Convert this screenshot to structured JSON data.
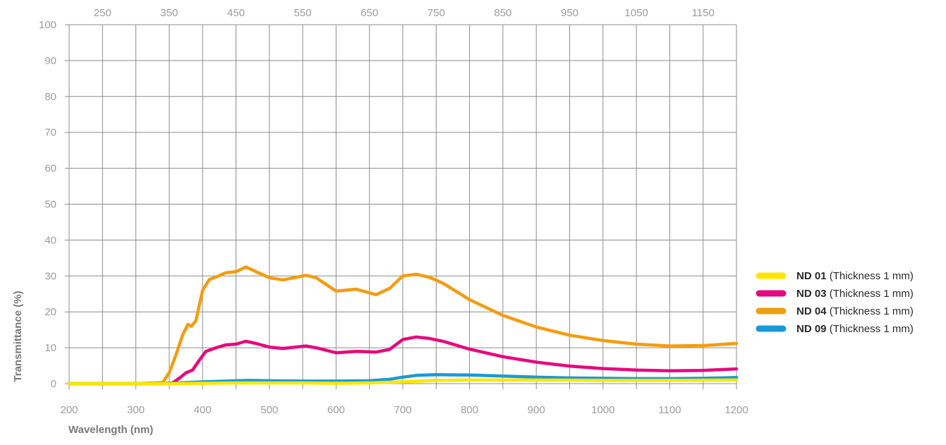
{
  "chart_data": {
    "type": "line",
    "xlabel": "Wavelength (nm)",
    "ylabel": "Transmittance (%)",
    "xlim": [
      200,
      1200
    ],
    "ylim": [
      0,
      100
    ],
    "x_ticks": [
      "200",
      "300",
      "400",
      "500",
      "600",
      "700",
      "800",
      "900",
      "1000",
      "1100",
      "1200"
    ],
    "x_top_ticks": [
      "250",
      "350",
      "450",
      "550",
      "650",
      "750",
      "850",
      "950",
      "1050",
      "1150"
    ],
    "y_ticks": [
      "0",
      "10",
      "20",
      "30",
      "40",
      "50",
      "60",
      "70",
      "80",
      "90",
      "100"
    ],
    "grid": true,
    "legend_position": "right",
    "series": [
      {
        "name": "ND 01",
        "label_suffix": "(Thickness 1 mm)",
        "color": "#ffe600",
        "x": [
          200,
          300,
          350,
          400,
          450,
          500,
          550,
          600,
          650,
          700,
          750,
          800,
          900,
          1000,
          1100,
          1200
        ],
        "y": [
          0,
          0,
          0,
          0.1,
          0.2,
          0.2,
          0.2,
          0.1,
          0.2,
          0.5,
          0.9,
          1.0,
          1.0,
          0.9,
          0.9,
          1.0
        ]
      },
      {
        "name": "ND 03",
        "label_suffix": "(Thickness 1 mm)",
        "color": "#e5097f",
        "x": [
          200,
          300,
          340,
          355,
          365,
          375,
          385,
          395,
          405,
          420,
          435,
          450,
          465,
          480,
          500,
          520,
          540,
          555,
          570,
          600,
          630,
          660,
          680,
          700,
          720,
          740,
          760,
          800,
          850,
          900,
          950,
          1000,
          1050,
          1100,
          1150,
          1200
        ],
        "y": [
          0,
          0,
          0,
          0.2,
          1.5,
          3.0,
          3.8,
          6.5,
          9.0,
          10.0,
          10.8,
          11.0,
          11.8,
          11.2,
          10.2,
          9.8,
          10.2,
          10.5,
          10.0,
          8.6,
          9.0,
          8.8,
          9.5,
          12.3,
          13.0,
          12.6,
          11.8,
          9.6,
          7.5,
          6.0,
          4.9,
          4.2,
          3.8,
          3.6,
          3.7,
          4.1
        ]
      },
      {
        "name": "ND 04",
        "label_suffix": "(Thickness 1 mm)",
        "color": "#f39c12",
        "x": [
          200,
          300,
          340,
          350,
          360,
          370,
          378,
          383,
          390,
          400,
          410,
          420,
          435,
          450,
          465,
          480,
          500,
          520,
          540,
          555,
          570,
          600,
          630,
          660,
          680,
          700,
          720,
          740,
          760,
          800,
          850,
          900,
          950,
          1000,
          1050,
          1100,
          1150,
          1200
        ],
        "y": [
          0,
          0,
          0.3,
          3.0,
          8.0,
          13.5,
          16.5,
          16.0,
          17.5,
          26.0,
          29.0,
          29.7,
          30.9,
          31.2,
          32.5,
          31.2,
          29.5,
          28.9,
          29.6,
          30.2,
          29.5,
          25.8,
          26.3,
          24.8,
          26.5,
          30.0,
          30.5,
          29.6,
          28.0,
          23.4,
          19.0,
          15.8,
          13.5,
          12.0,
          11.0,
          10.5,
          10.6,
          11.2
        ]
      },
      {
        "name": "ND 09",
        "label_suffix": "(Thickness 1 mm)",
        "color": "#1a9ad6",
        "x": [
          200,
          300,
          350,
          400,
          450,
          470,
          500,
          550,
          600,
          650,
          680,
          700,
          720,
          750,
          800,
          850,
          900,
          950,
          1000,
          1050,
          1100,
          1150,
          1200
        ],
        "y": [
          0,
          0,
          0.1,
          0.5,
          0.8,
          0.9,
          0.8,
          0.7,
          0.7,
          0.8,
          1.2,
          1.8,
          2.3,
          2.5,
          2.4,
          2.1,
          1.8,
          1.6,
          1.5,
          1.4,
          1.4,
          1.5,
          1.7
        ]
      }
    ]
  }
}
